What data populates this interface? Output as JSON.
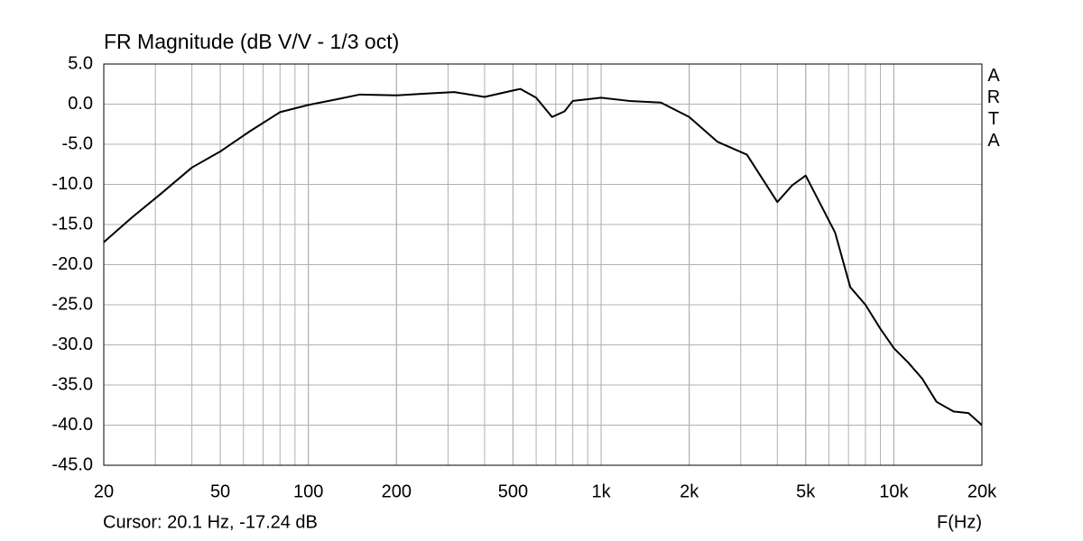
{
  "chart_data": {
    "type": "line",
    "title": "FR Magnitude (dB V/V - 1/3 oct)",
    "x_label": "F(Hz)",
    "cursor": "Cursor: 20.1 Hz, -17.24 dB",
    "watermark": "ARTA",
    "log_x": true,
    "grid": true,
    "color": "#000000",
    "x": [
      20,
      25,
      31.5,
      40,
      50,
      63,
      80,
      100,
      125,
      150,
      200,
      250,
      315,
      400,
      500,
      530,
      600,
      680,
      750,
      800,
      1000,
      1250,
      1600,
      2000,
      2500,
      3150,
      4000,
      4500,
      5000,
      6300,
      7100,
      8000,
      9000,
      10000,
      11200,
      12500,
      14000,
      16000,
      18000,
      20000
    ],
    "values": [
      -17.2,
      -14.1,
      -11.1,
      -7.9,
      -5.9,
      -3.4,
      -1.0,
      -0.1,
      0.6,
      1.2,
      1.1,
      1.3,
      1.5,
      0.9,
      1.7,
      1.9,
      0.8,
      -1.6,
      -0.9,
      0.4,
      0.8,
      0.4,
      0.2,
      -1.6,
      -4.7,
      -6.3,
      -12.2,
      -10.1,
      -8.9,
      -16.0,
      -22.8,
      -25.0,
      -28.0,
      -30.4,
      -32.2,
      -34.2,
      -37.1,
      -38.3,
      -38.5,
      -40.0
    ],
    "xlim": [
      20,
      20000
    ],
    "xticks": [
      20,
      50,
      100,
      200,
      500,
      {
        "value": 1000,
        "label": "1k"
      },
      {
        "value": 2000,
        "label": "2k"
      },
      {
        "value": 5000,
        "label": "5k"
      },
      {
        "value": 10000,
        "label": "10k"
      },
      {
        "value": 20000,
        "label": "20k"
      }
    ],
    "ylim": [
      -45,
      5
    ],
    "yticks": [
      {
        "value": 5,
        "label": "5.0"
      },
      {
        "value": 0,
        "label": "0.0"
      },
      {
        "value": -5,
        "label": "-5.0"
      },
      {
        "value": -10,
        "label": "-10.0"
      },
      {
        "value": -15,
        "label": "-15.0"
      },
      {
        "value": -20,
        "label": "-20.0"
      },
      {
        "value": -25,
        "label": "-25.0"
      },
      {
        "value": -30,
        "label": "-30.0"
      },
      {
        "value": -35,
        "label": "-35.0"
      },
      {
        "value": -40,
        "label": "-40.0"
      },
      {
        "value": -45,
        "label": "-45.0"
      }
    ]
  }
}
